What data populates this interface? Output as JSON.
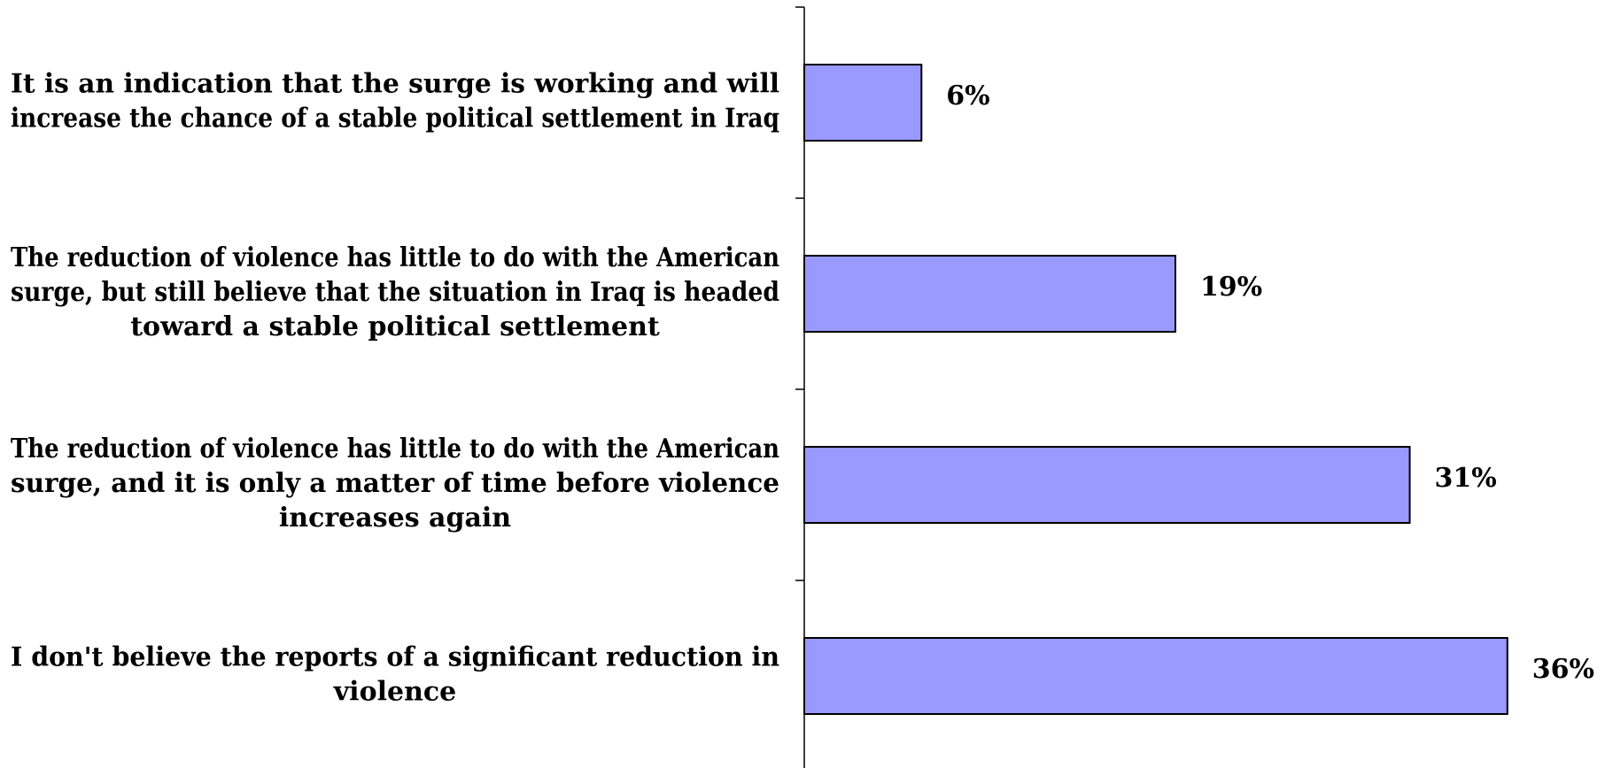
{
  "chart_data": {
    "type": "bar",
    "orientation": "horizontal",
    "categories": [
      [
        "It is an indication that the surge is working and will",
        "increase the chance of a stable political settlement in Iraq"
      ],
      [
        "The reduction of violence has little to do with the American",
        "surge, but still believe that the situation in Iraq is headed",
        "toward a stable political settlement"
      ],
      [
        "The reduction of violence has little to do with the American",
        "surge, and it is only a matter of time before violence",
        "increases again"
      ],
      [
        "I don't believe the reports of a significant reduction in",
        "violence"
      ]
    ],
    "values": [
      6,
      19,
      31,
      36
    ],
    "value_labels": [
      "6%",
      "19%",
      "31%",
      "36%"
    ],
    "unit": "%",
    "xlim": [
      0,
      40
    ],
    "bar_color": "#9999ff",
    "bar_stroke": "#000000",
    "grid": false,
    "legend": "none"
  }
}
